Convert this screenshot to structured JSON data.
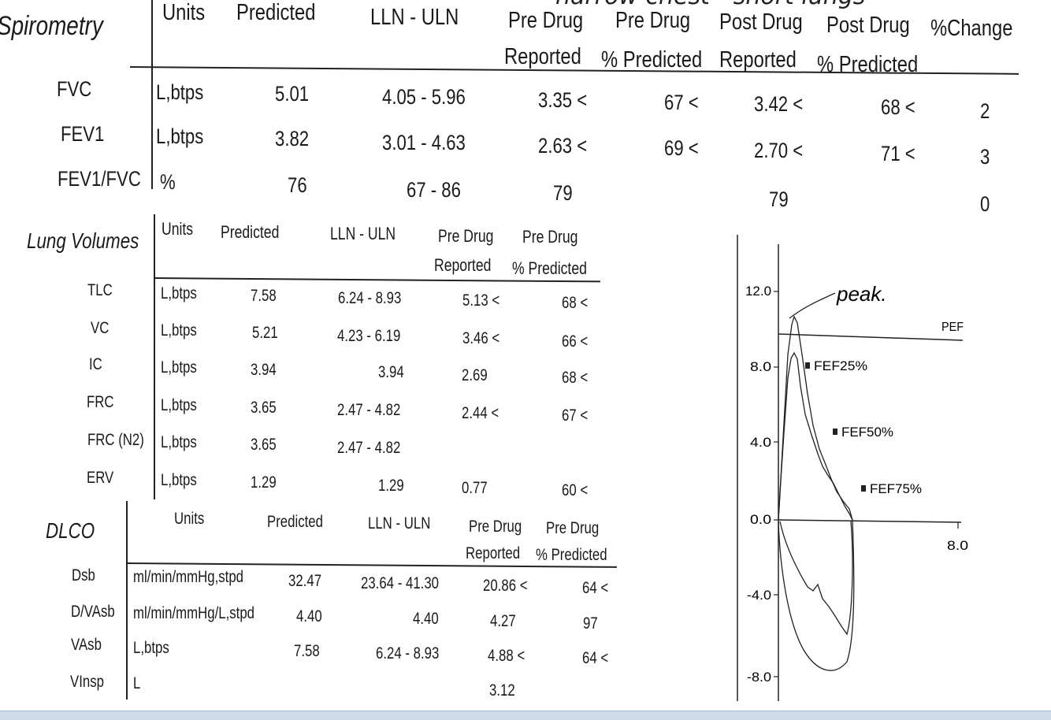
{
  "handwriting": {
    "top_note": "narrow chest - short lungs",
    "peak_note": "peak."
  },
  "spirometry": {
    "title": "Spirometry",
    "headers": {
      "units": "Units",
      "predicted": "Predicted",
      "lln_uln": "LLN - ULN",
      "pre_rep_1": "Pre Drug",
      "pre_rep_2": "Reported",
      "pre_pct_1": "Pre Drug",
      "pre_pct_2": "% Predicted",
      "post_rep_1": "Post Drug",
      "post_rep_2": "Reported",
      "post_pct_1": "Post Drug",
      "post_pct_2": "% Predicted",
      "change": "%Change"
    },
    "rows": [
      {
        "name": "FVC",
        "units": "L,btps",
        "predicted": "5.01",
        "lln_uln": "4.05 - 5.96",
        "pre_reported": "3.35 <",
        "pre_pct": "67 <",
        "post_reported": "3.42 <",
        "post_pct": "68 <",
        "change": "2"
      },
      {
        "name": "FEV1",
        "units": "L,btps",
        "predicted": "3.82",
        "lln_uln": "3.01 - 4.63",
        "pre_reported": "2.63 <",
        "pre_pct": "69 <",
        "post_reported": "2.70 <",
        "post_pct": "71 <",
        "change": "3"
      },
      {
        "name": "FEV1/FVC",
        "units": "%",
        "predicted": "76",
        "lln_uln": "67 - 86",
        "pre_reported": "79",
        "pre_pct": "",
        "post_reported": "79",
        "post_pct": "",
        "change": "0"
      }
    ]
  },
  "lung_volumes": {
    "title": "Lung Volumes",
    "headers": {
      "units": "Units",
      "predicted": "Predicted",
      "lln_uln": "LLN - ULN",
      "pre_rep_1": "Pre Drug",
      "pre_rep_2": "Reported",
      "pre_pct_1": "Pre Drug",
      "pre_pct_2": "% Predicted"
    },
    "rows": [
      {
        "name": "TLC",
        "units": "L,btps",
        "predicted": "7.58",
        "lln_uln": "6.24 - 8.93",
        "pre_reported": "5.13 <",
        "pre_pct": "68 <"
      },
      {
        "name": "VC",
        "units": "L,btps",
        "predicted": "5.21",
        "lln_uln": "4.23 - 6.19",
        "pre_reported": "3.46 <",
        "pre_pct": "66 <"
      },
      {
        "name": "IC",
        "units": "L,btps",
        "predicted": "3.94",
        "lln_uln": "3.94",
        "pre_reported": "2.69",
        "pre_pct": "68 <"
      },
      {
        "name": "FRC",
        "units": "L,btps",
        "predicted": "3.65",
        "lln_uln": "2.47 - 4.82",
        "pre_reported": "2.44 <",
        "pre_pct": "67 <"
      },
      {
        "name": "FRC (N2)",
        "units": "L,btps",
        "predicted": "3.65",
        "lln_uln": "2.47 - 4.82",
        "pre_reported": "",
        "pre_pct": ""
      },
      {
        "name": "ERV",
        "units": "L,btps",
        "predicted": "1.29",
        "lln_uln": "1.29",
        "pre_reported": "0.77",
        "pre_pct": "60 <"
      }
    ]
  },
  "dlco": {
    "title": "DLCO",
    "headers": {
      "units": "Units",
      "predicted": "Predicted",
      "lln_uln": "LLN - ULN",
      "pre_rep_1": "Pre Drug",
      "pre_rep_2": "Reported",
      "pre_pct_1": "Pre Drug",
      "pre_pct_2": "% Predicted"
    },
    "rows": [
      {
        "name": "Dsb",
        "units": "ml/min/mmHg,stpd",
        "predicted": "32.47",
        "lln_uln": "23.64 - 41.30",
        "pre_reported": "20.86 <",
        "pre_pct": "64 <"
      },
      {
        "name": "D/VAsb",
        "units": "ml/min/mmHg/L,stpd",
        "predicted": "4.40",
        "lln_uln": "4.40",
        "pre_reported": "4.27",
        "pre_pct": "97"
      },
      {
        "name": "VAsb",
        "units": "L,btps",
        "predicted": "7.58",
        "lln_uln": "6.24 - 8.93",
        "pre_reported": "4.88 <",
        "pre_pct": "64 <"
      },
      {
        "name": "VInsp",
        "units": "L",
        "predicted": "",
        "lln_uln": "",
        "pre_reported": "3.12",
        "pre_pct": ""
      }
    ]
  },
  "flow_volume_loop": {
    "y_ticks": [
      "12.0",
      "8.0",
      "4.0",
      "0.0",
      "-4.0",
      "-8.0"
    ],
    "x_tick": "8.0",
    "pef_label": "PEF",
    "markers": [
      "FEF25%",
      "FEF50%",
      "FEF75%"
    ]
  }
}
